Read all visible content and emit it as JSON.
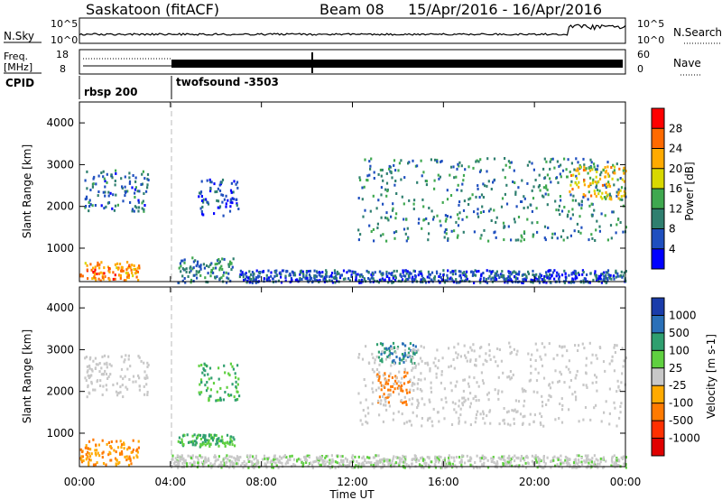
{
  "header": {
    "station": "Saskatoon (fitACF)",
    "beam": "Beam 08",
    "date_range": "15/Apr/2016 - 16/Apr/2016"
  },
  "summary_panels": {
    "nsky_label": "N.Sky",
    "nsky_ticks": [
      "10^5",
      "10^0"
    ],
    "nsearch_label": "N.Search",
    "nsearch_ticks": [
      "10^5",
      "10^0"
    ],
    "freq_label_1": "Freq.",
    "freq_label_2": "[MHz]",
    "freq_ticks": [
      "18",
      "8"
    ],
    "nave_label": "Nave",
    "nave_ticks": [
      "60",
      "0"
    ],
    "cpid_label": "CPID",
    "cpid_modes": [
      {
        "name": "rbsp 200",
        "start_hour": 0,
        "end_hour": 4
      },
      {
        "name": "twofsound -3503",
        "start_hour": 4,
        "end_hour": 24
      }
    ]
  },
  "axes": {
    "x_label": "Time UT",
    "x_ticks": [
      "00:00",
      "04:00",
      "08:00",
      "12:00",
      "16:00",
      "20:00",
      "00:00"
    ],
    "y_label": "Slant Range [km]",
    "y_ticks": [
      "1000",
      "2000",
      "3000",
      "4000"
    ]
  },
  "power_colorbar": {
    "label": "Power [dB]",
    "ticks": [
      "4",
      "8",
      "12",
      "16",
      "20",
      "24",
      "28"
    ],
    "colors": [
      "#0000ff",
      "#1f4fbf",
      "#2f7f6f",
      "#3fa84f",
      "#d8d800",
      "#ffaa00",
      "#ff6a00",
      "#ff0000"
    ]
  },
  "velocity_colorbar": {
    "label": "Velocity [m s-1]",
    "ticks": [
      "1000",
      "500",
      "100",
      "25",
      "-25",
      "-100",
      "-500",
      "-1000"
    ],
    "colors": [
      "#1a3caa",
      "#2a70b8",
      "#2f9f6f",
      "#5fd040",
      "#c8c8c8",
      "#ffaa00",
      "#ff7a00",
      "#ff3000",
      "#e00000"
    ]
  },
  "chart_data": [
    {
      "type": "heatmap",
      "panel": "power",
      "xlabel": "Time UT",
      "ylabel": "Slant Range [km]",
      "xlim_hours": [
        0,
        24
      ],
      "ylim_km": [
        200,
        4500
      ],
      "colorbar": "Power [dB]",
      "colorbar_range": [
        0,
        32
      ],
      "regions": [
        {
          "t0": 0.0,
          "t1": 2.6,
          "r0": 250,
          "r1": 700,
          "value": 24
        },
        {
          "t0": 0.2,
          "t1": 3.0,
          "r0": 1900,
          "r1": 2900,
          "value": 8
        },
        {
          "t0": 4.3,
          "t1": 6.8,
          "r0": 200,
          "r1": 800,
          "value": 10
        },
        {
          "t0": 5.2,
          "t1": 7.0,
          "r0": 1800,
          "r1": 2700,
          "value": 6
        },
        {
          "t0": 12.2,
          "t1": 24.0,
          "r0": 1200,
          "r1": 3200,
          "value": 10
        },
        {
          "t0": 21.5,
          "t1": 24.0,
          "r0": 2200,
          "r1": 3000,
          "value": 20
        },
        {
          "t0": 7.0,
          "t1": 24.0,
          "r0": 200,
          "r1": 500,
          "value": 6
        }
      ]
    },
    {
      "type": "heatmap",
      "panel": "velocity",
      "xlabel": "Time UT",
      "ylabel": "Slant Range [km]",
      "xlim_hours": [
        0,
        24
      ],
      "ylim_km": [
        200,
        4500
      ],
      "colorbar": "Velocity [m s-1]",
      "colorbar_range": [
        -1000,
        1000
      ],
      "regions": [
        {
          "t0": 0.0,
          "t1": 2.6,
          "r0": 250,
          "r1": 900,
          "value": -100
        },
        {
          "t0": 0.2,
          "t1": 3.0,
          "r0": 1900,
          "r1": 2900,
          "value": 0
        },
        {
          "t0": 4.3,
          "t1": 6.8,
          "r0": 700,
          "r1": 1000,
          "value": 100
        },
        {
          "t0": 5.2,
          "t1": 7.0,
          "r0": 1800,
          "r1": 2700,
          "value": 100
        },
        {
          "t0": 13.0,
          "t1": 14.8,
          "r0": 2700,
          "r1": 3200,
          "value": 500
        },
        {
          "t0": 13.0,
          "t1": 14.5,
          "r0": 1700,
          "r1": 2500,
          "value": -300
        },
        {
          "t0": 12.2,
          "t1": 24.0,
          "r0": 1200,
          "r1": 3200,
          "value": 0
        },
        {
          "t0": 4.0,
          "t1": 24.0,
          "r0": 200,
          "r1": 500,
          "value": 10
        }
      ]
    }
  ]
}
